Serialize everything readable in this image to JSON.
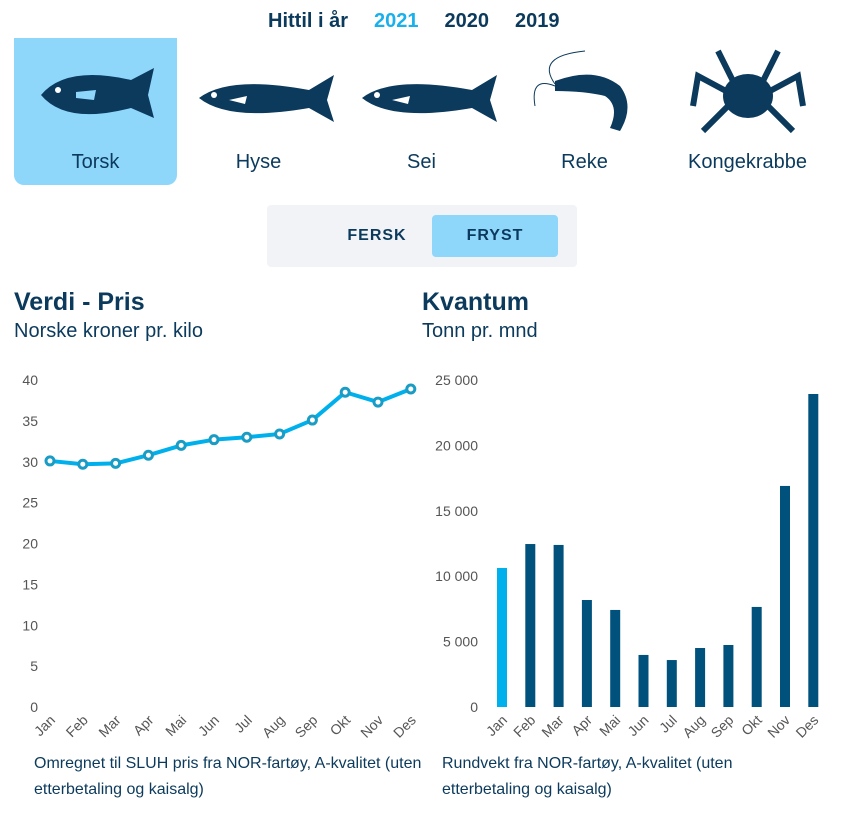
{
  "years": {
    "label": "Hittil i år",
    "options": [
      "2021",
      "2020",
      "2019"
    ],
    "active": "2021"
  },
  "species": [
    {
      "label": "Torsk",
      "icon": "cod-icon"
    },
    {
      "label": "Hyse",
      "icon": "haddock-icon"
    },
    {
      "label": "Sei",
      "icon": "saithe-icon"
    },
    {
      "label": "Reke",
      "icon": "shrimp-icon"
    },
    {
      "label": "Kongekrabbe",
      "icon": "king-crab-icon"
    }
  ],
  "active_species": "Torsk",
  "toggle": {
    "fresh": "FERSK",
    "frozen": "FRYST",
    "active": "FRYST"
  },
  "colors": {
    "accent": "#00b0ec",
    "dark": "#00527d",
    "active_bg": "#8fd6fb"
  },
  "chart_data": [
    {
      "type": "line",
      "title": "Verdi - Pris",
      "subtitle": "Norske kroner pr. kilo",
      "categories": [
        "Jan",
        "Feb",
        "Mar",
        "Apr",
        "Mai",
        "Jun",
        "Jul",
        "Aug",
        "Sep",
        "Okt",
        "Nov",
        "Des"
      ],
      "values": [
        30.1,
        29.7,
        29.8,
        30.8,
        32.0,
        32.7,
        33.0,
        33.4,
        35.1,
        38.5,
        37.3,
        38.9
      ],
      "ylim": [
        0,
        40
      ],
      "yticks": [
        "0",
        "5",
        "10",
        "15",
        "20",
        "25",
        "30",
        "35",
        "40"
      ],
      "note": "Omregnet til SLUH pris fra NOR-fartøy, A-kvalitet (uten etterbetaling og kaisalg)"
    },
    {
      "type": "bar",
      "title": "Kvantum",
      "subtitle": "Tonn pr. mnd",
      "categories": [
        "Jan",
        "Feb",
        "Mar",
        "Apr",
        "Mai",
        "Jun",
        "Jul",
        "Aug",
        "Sep",
        "Okt",
        "Nov",
        "Des"
      ],
      "values": [
        10630,
        12460,
        12390,
        8180,
        7420,
        3980,
        3590,
        4510,
        4740,
        7650,
        16900,
        23930
      ],
      "ylim": [
        0,
        25000
      ],
      "yticks": [
        "0",
        "5 000",
        "10 000",
        "15 000",
        "20 000",
        "25 000"
      ],
      "highlight": "Jan",
      "note": "Rundvekt fra NOR-fartøy, A-kvalitet (uten etterbetaling og kaisalg)"
    }
  ]
}
